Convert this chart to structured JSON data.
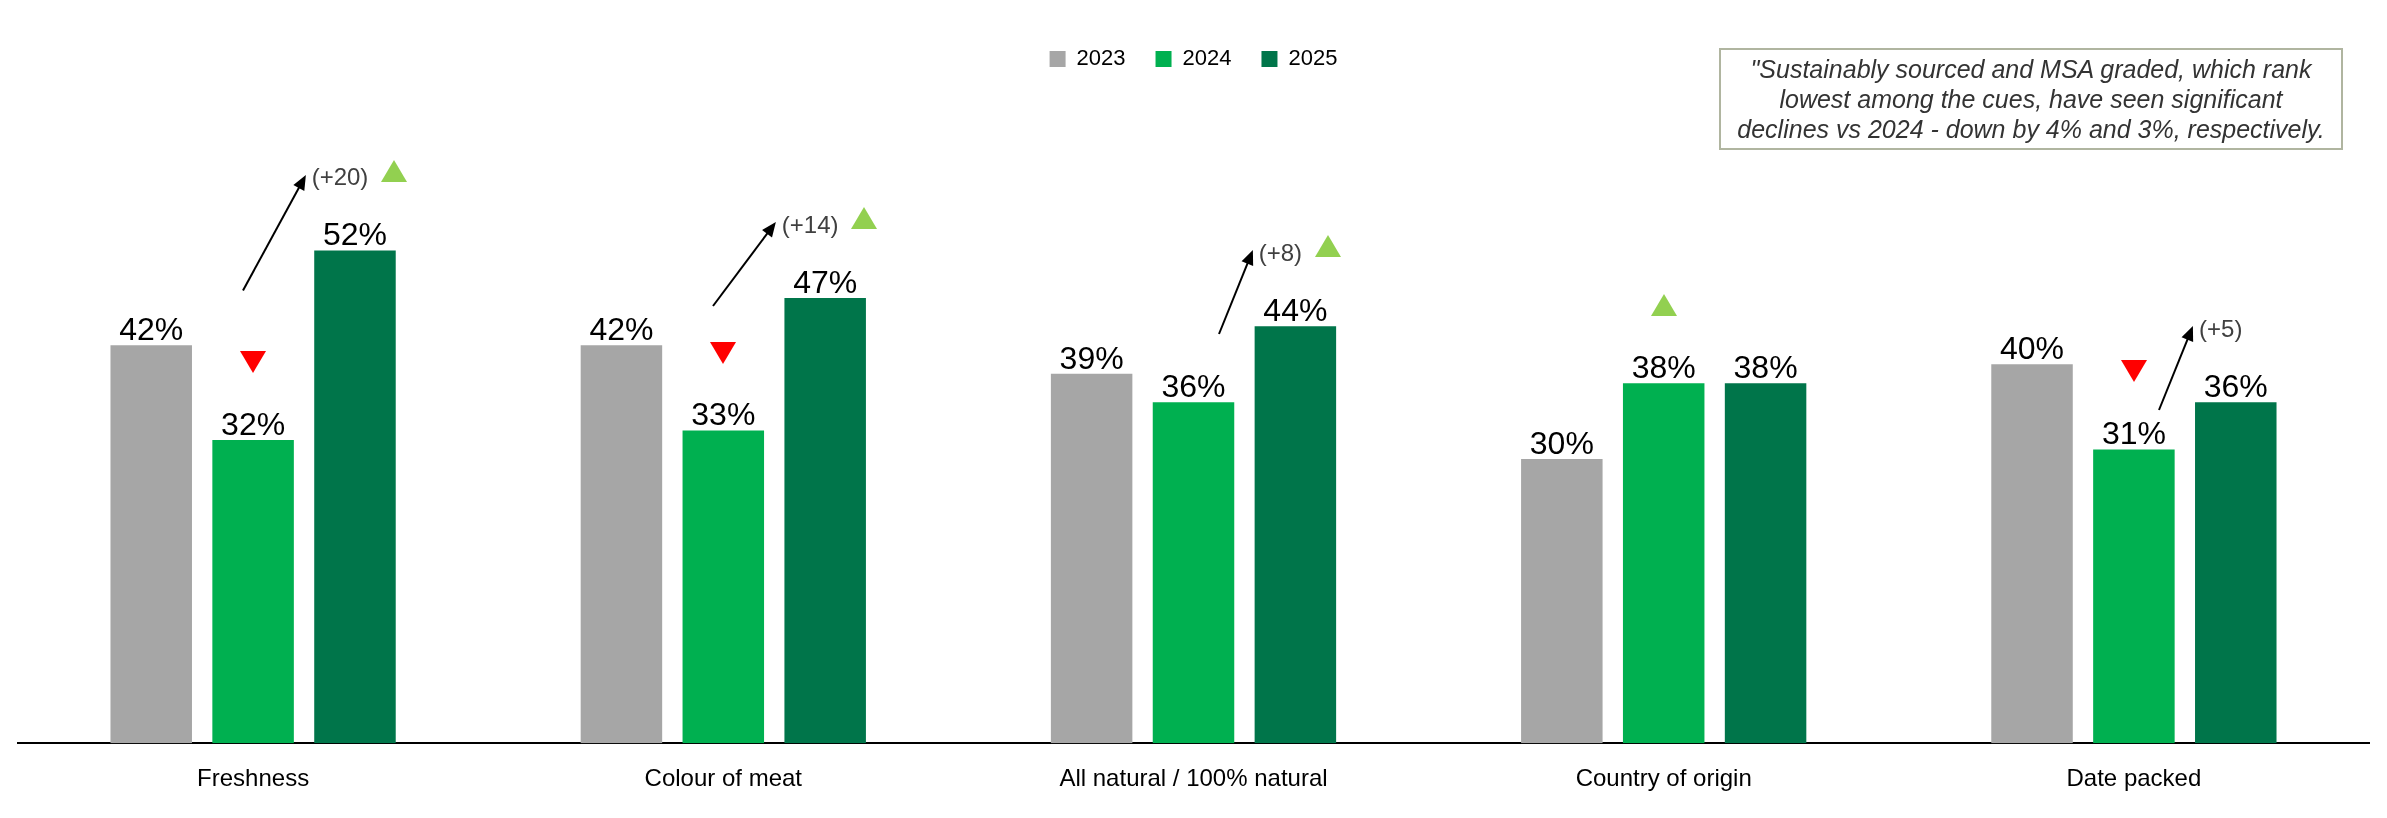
{
  "chart_data": {
    "type": "bar",
    "categories": [
      "Freshness",
      "Colour of meat",
      "All natural / 100% natural",
      "Country of origin",
      "Date packed"
    ],
    "series": [
      {
        "name": "2023",
        "color": "#a6a6a6",
        "values": [
          42,
          42,
          39,
          30,
          40
        ],
        "value_labels": [
          "42%",
          "42%",
          "39%",
          "30%",
          "40%"
        ]
      },
      {
        "name": "2024",
        "color": "#00b050",
        "values": [
          32,
          33,
          36,
          38,
          31
        ],
        "value_labels": [
          "32%",
          "33%",
          "36%",
          "38%",
          "31%"
        ]
      },
      {
        "name": "2025",
        "color": "#00754a",
        "values": [
          52,
          47,
          44,
          38,
          36
        ],
        "value_labels": [
          "52%",
          "47%",
          "44%",
          "38%",
          "36%"
        ]
      }
    ],
    "annotations": [
      "(+20)",
      "(+14)",
      "(+8)",
      "(+5)",
      "\"Sustainably sourced and MSA graded, which rank lowest among the cues, have seen significant declines vs 2024 - down by 4% and 3%, respectively."
    ],
    "legend": "top",
    "grid": false
  }
}
